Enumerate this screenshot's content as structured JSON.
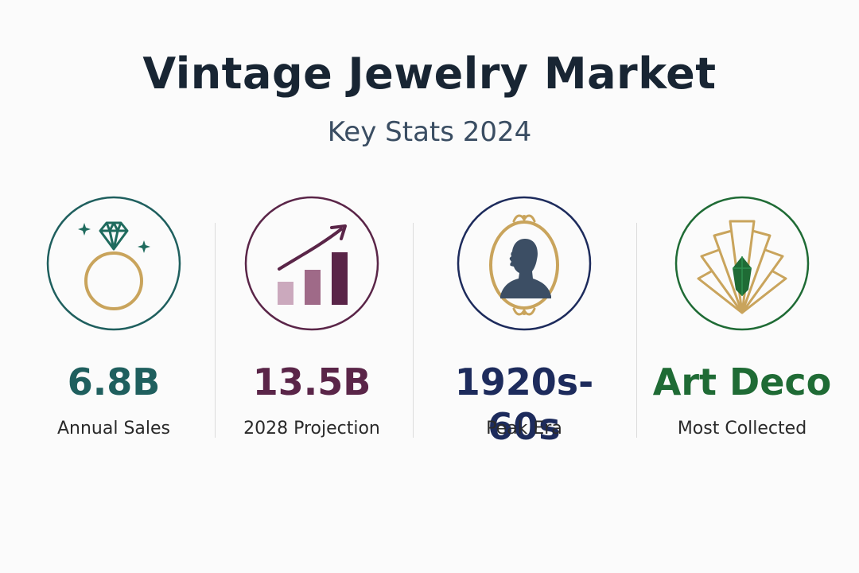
{
  "header": {
    "title": "Vintage Jewelry Market",
    "subtitle": "Key Stats 2024"
  },
  "stats": [
    {
      "value": "6.8B",
      "label": "Annual Sales",
      "icon": "diamond-ring-icon",
      "color": "#1f5f5e"
    },
    {
      "value": "13.5B",
      "label": "2028 Projection",
      "icon": "growth-chart-icon",
      "color": "#5a2548"
    },
    {
      "value": "1920s-60s",
      "label": "Peak Era",
      "icon": "cameo-portrait-icon",
      "color": "#1d2b5c"
    },
    {
      "value": "Art Deco",
      "label": "Most Collected",
      "icon": "art-deco-fan-icon",
      "color": "#1f6b35"
    }
  ],
  "colors": {
    "gold": "#c9a45c",
    "title": "#182533"
  }
}
